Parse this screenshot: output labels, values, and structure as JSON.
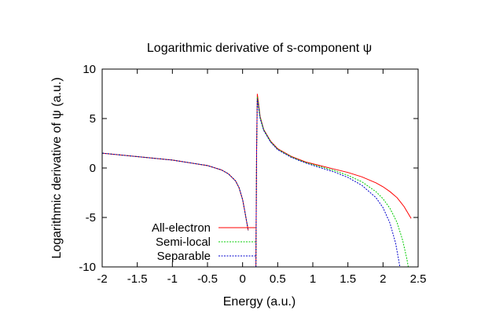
{
  "chart_data": {
    "type": "line",
    "title": "Logarithmic derivative of s-component ψ",
    "xlabel": "Energy (a.u.)",
    "ylabel": "Logarithmic derivative of ψ (a.u.)",
    "xlim": [
      -2,
      2.5
    ],
    "ylim": [
      -10,
      10
    ],
    "x_ticks": [
      -2,
      -1.5,
      -1,
      -0.5,
      0,
      0.5,
      1,
      1.5,
      2,
      2.5
    ],
    "x_tick_labels": [
      "-2",
      "-1.5",
      "-1",
      "-0.5",
      "0",
      "0.5",
      "1",
      "1.5",
      "2",
      "2.5"
    ],
    "y_ticks": [
      -10,
      -5,
      0,
      5,
      10
    ],
    "y_tick_labels": [
      "-10",
      "-5",
      "0",
      "5",
      "10"
    ],
    "grid": false,
    "legend_position": "bottom-left",
    "series": [
      {
        "name": "All-electron",
        "color": "#ff0000",
        "dash": "solid",
        "segments": [
          [
            [
              -2.0,
              1.5
            ],
            [
              -1.5,
              1.15
            ],
            [
              -1.0,
              0.8
            ],
            [
              -0.5,
              0.25
            ],
            [
              -0.3,
              -0.2
            ],
            [
              -0.2,
              -0.6
            ],
            [
              -0.1,
              -1.3
            ],
            [
              -0.05,
              -2.0
            ],
            [
              0.0,
              -3.2
            ],
            [
              0.03,
              -4.3
            ],
            [
              0.06,
              -5.5
            ],
            [
              0.08,
              -6.3
            ]
          ],
          [
            [
              0.19,
              -10.0
            ],
            [
              0.2,
              1.8
            ],
            [
              0.21,
              7.5
            ],
            [
              0.25,
              5.2
            ],
            [
              0.3,
              3.9
            ],
            [
              0.4,
              2.7
            ],
            [
              0.5,
              1.95
            ],
            [
              0.7,
              1.15
            ],
            [
              0.9,
              0.6
            ],
            [
              1.1,
              0.25
            ],
            [
              1.3,
              -0.1
            ],
            [
              1.5,
              -0.45
            ],
            [
              1.7,
              -0.9
            ],
            [
              1.9,
              -1.5
            ],
            [
              2.0,
              -1.9
            ],
            [
              2.1,
              -2.4
            ],
            [
              2.2,
              -3.0
            ],
            [
              2.3,
              -3.9
            ],
            [
              2.4,
              -5.1
            ]
          ]
        ]
      },
      {
        "name": "Semi-local",
        "color": "#00cc00",
        "dash": "dotted",
        "segments": [
          [
            [
              -2.0,
              1.5
            ],
            [
              -1.5,
              1.15
            ],
            [
              -1.0,
              0.8
            ],
            [
              -0.5,
              0.25
            ],
            [
              -0.3,
              -0.2
            ],
            [
              -0.2,
              -0.6
            ],
            [
              -0.1,
              -1.3
            ],
            [
              -0.05,
              -2.0
            ],
            [
              0.0,
              -3.2
            ],
            [
              0.03,
              -4.3
            ],
            [
              0.06,
              -5.5
            ],
            [
              0.08,
              -6.3
            ]
          ],
          [
            [
              0.19,
              -10.0
            ],
            [
              0.2,
              1.8
            ],
            [
              0.21,
              7.2
            ],
            [
              0.25,
              5.1
            ],
            [
              0.3,
              3.85
            ],
            [
              0.4,
              2.65
            ],
            [
              0.5,
              1.9
            ],
            [
              0.7,
              1.1
            ],
            [
              0.9,
              0.55
            ],
            [
              1.1,
              0.15
            ],
            [
              1.3,
              -0.25
            ],
            [
              1.5,
              -0.75
            ],
            [
              1.7,
              -1.4
            ],
            [
              1.9,
              -2.4
            ],
            [
              2.0,
              -3.1
            ],
            [
              2.1,
              -4.1
            ],
            [
              2.2,
              -5.5
            ],
            [
              2.28,
              -7.3
            ],
            [
              2.34,
              -9.2
            ],
            [
              2.36,
              -10.0
            ]
          ]
        ]
      },
      {
        "name": "Separable",
        "color": "#0000cc",
        "dash": "dotted",
        "segments": [
          [
            [
              -2.0,
              1.5
            ],
            [
              -1.5,
              1.15
            ],
            [
              -1.0,
              0.8
            ],
            [
              -0.5,
              0.25
            ],
            [
              -0.3,
              -0.2
            ],
            [
              -0.2,
              -0.6
            ],
            [
              -0.1,
              -1.3
            ],
            [
              -0.05,
              -2.0
            ],
            [
              0.0,
              -3.2
            ],
            [
              0.03,
              -4.3
            ],
            [
              0.06,
              -5.5
            ],
            [
              0.08,
              -6.3
            ]
          ],
          [
            [
              0.19,
              -10.0
            ],
            [
              0.2,
              1.8
            ],
            [
              0.21,
              7.0
            ],
            [
              0.25,
              5.0
            ],
            [
              0.3,
              3.8
            ],
            [
              0.4,
              2.6
            ],
            [
              0.5,
              1.85
            ],
            [
              0.7,
              1.05
            ],
            [
              0.9,
              0.5
            ],
            [
              1.1,
              0.05
            ],
            [
              1.3,
              -0.4
            ],
            [
              1.5,
              -0.95
            ],
            [
              1.7,
              -1.75
            ],
            [
              1.9,
              -3.0
            ],
            [
              2.0,
              -4.0
            ],
            [
              2.1,
              -5.6
            ],
            [
              2.18,
              -7.6
            ],
            [
              2.24,
              -10.0
            ]
          ]
        ]
      }
    ]
  }
}
